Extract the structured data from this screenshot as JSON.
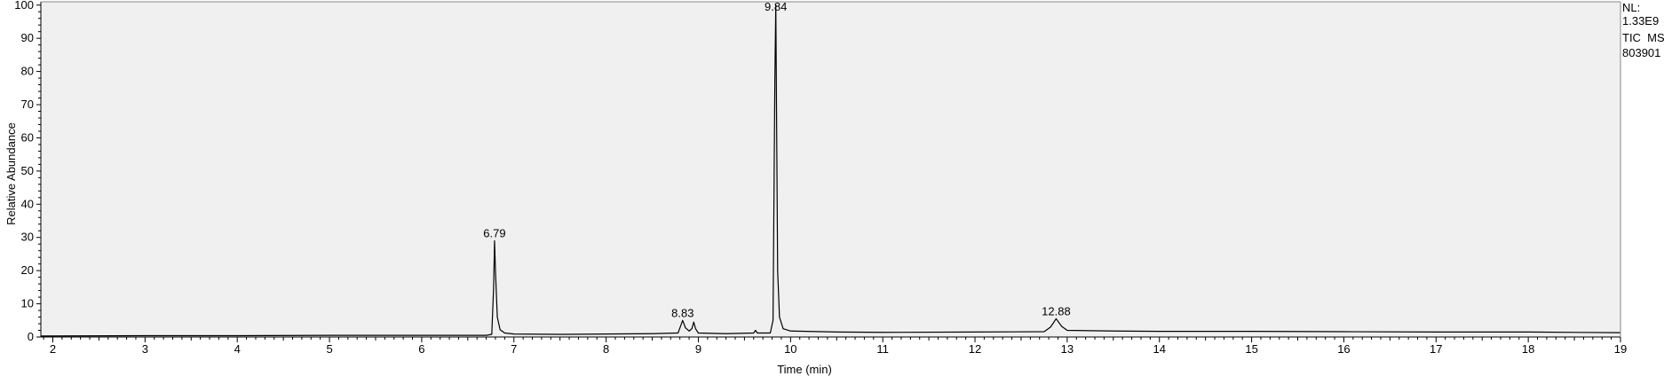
{
  "chart_data": {
    "type": "line",
    "xlabel": "Time (min)",
    "ylabel": "Relative Abundance",
    "xlim": [
      1.87,
      19.0
    ],
    "ylim": [
      0,
      101
    ],
    "x_ticks": [
      2,
      3,
      4,
      5,
      6,
      7,
      8,
      9,
      10,
      11,
      12,
      13,
      14,
      15,
      16,
      17,
      18,
      19
    ],
    "y_ticks": [
      0,
      10,
      20,
      30,
      40,
      50,
      60,
      70,
      80,
      90,
      100
    ],
    "info_text": [
      "NL:",
      "1.33E9",
      "TIC  MS",
      "803901"
    ],
    "peak_labels": [
      {
        "x": 6.79,
        "y": 29,
        "label": "6.79"
      },
      {
        "x": 8.83,
        "y": 5,
        "label": "8.83"
      },
      {
        "x": 9.84,
        "y": 100,
        "label": "9.84"
      },
      {
        "x": 12.88,
        "y": 5.5,
        "label": "12.88"
      }
    ],
    "series": [
      {
        "values": [
          [
            1.87,
            0.3
          ],
          [
            3.0,
            0.4
          ],
          [
            4.0,
            0.4
          ],
          [
            5.0,
            0.5
          ],
          [
            6.0,
            0.5
          ],
          [
            6.7,
            0.5
          ],
          [
            6.76,
            0.8
          ],
          [
            6.78,
            15
          ],
          [
            6.79,
            29
          ],
          [
            6.8,
            20
          ],
          [
            6.82,
            6
          ],
          [
            6.85,
            2.2
          ],
          [
            6.9,
            1.2
          ],
          [
            7.0,
            0.9
          ],
          [
            7.5,
            0.8
          ],
          [
            8.0,
            0.9
          ],
          [
            8.5,
            1.0
          ],
          [
            8.78,
            1.2
          ],
          [
            8.81,
            3.5
          ],
          [
            8.83,
            5.0
          ],
          [
            8.86,
            2.8
          ],
          [
            8.9,
            1.8
          ],
          [
            8.93,
            2.5
          ],
          [
            8.95,
            4.5
          ],
          [
            8.97,
            2.5
          ],
          [
            9.0,
            1.2
          ],
          [
            9.3,
            1.0
          ],
          [
            9.6,
            1.2
          ],
          [
            9.62,
            2.0
          ],
          [
            9.64,
            1.2
          ],
          [
            9.78,
            1.2
          ],
          [
            9.81,
            5
          ],
          [
            9.83,
            78
          ],
          [
            9.84,
            100
          ],
          [
            9.85,
            60
          ],
          [
            9.86,
            20
          ],
          [
            9.88,
            6
          ],
          [
            9.92,
            2.5
          ],
          [
            10.0,
            1.8
          ],
          [
            10.5,
            1.5
          ],
          [
            11.0,
            1.4
          ],
          [
            12.0,
            1.5
          ],
          [
            12.75,
            1.6
          ],
          [
            12.82,
            3.0
          ],
          [
            12.88,
            5.5
          ],
          [
            12.94,
            3.2
          ],
          [
            13.0,
            2.0
          ],
          [
            13.5,
            1.8
          ],
          [
            14.0,
            1.7
          ],
          [
            15.0,
            1.7
          ],
          [
            16.0,
            1.6
          ],
          [
            17.0,
            1.5
          ],
          [
            18.0,
            1.5
          ],
          [
            19.0,
            1.3
          ]
        ]
      }
    ]
  }
}
